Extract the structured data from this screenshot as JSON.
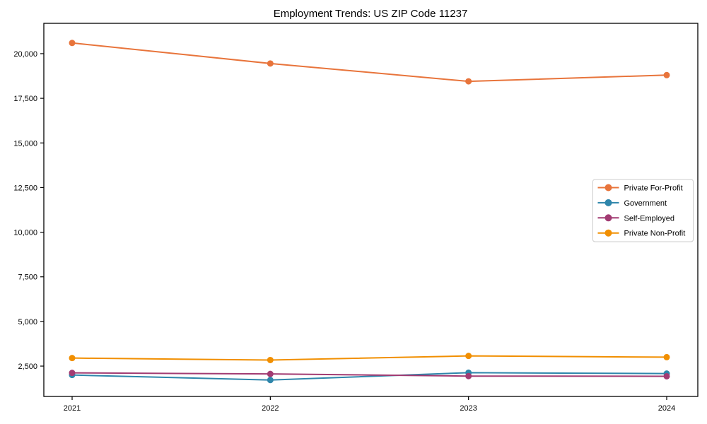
{
  "chart_data": {
    "type": "line",
    "title": "Employment Trends: US ZIP Code 11237",
    "categories": [
      "2021",
      "2022",
      "2023",
      "2024"
    ],
    "series": [
      {
        "name": "Private For-Profit",
        "color": "#E8743B",
        "values": [
          20600,
          19450,
          18450,
          18800
        ]
      },
      {
        "name": "Government",
        "color": "#2E86AB",
        "values": [
          2000,
          1720,
          2130,
          2080
        ]
      },
      {
        "name": "Self-Employed",
        "color": "#A23B72",
        "values": [
          2120,
          2060,
          1940,
          1930
        ]
      },
      {
        "name": "Private Non-Profit",
        "color": "#F18F01",
        "values": [
          2950,
          2840,
          3070,
          3000
        ]
      }
    ],
    "xlabel": "",
    "ylabel": "",
    "ylim": [
      800,
      21700
    ],
    "yticks": [
      2500,
      5000,
      7500,
      10000,
      12500,
      15000,
      17500,
      20000
    ],
    "ytick_labels": [
      "2,500",
      "5,000",
      "7,500",
      "10,000",
      "12,500",
      "15,000",
      "17,500",
      "20,000"
    ],
    "grid": false,
    "legend_position": "center-right",
    "axis_color": "#000000",
    "background_color": "#ffffff",
    "legend_border_color": "#cccccc"
  }
}
